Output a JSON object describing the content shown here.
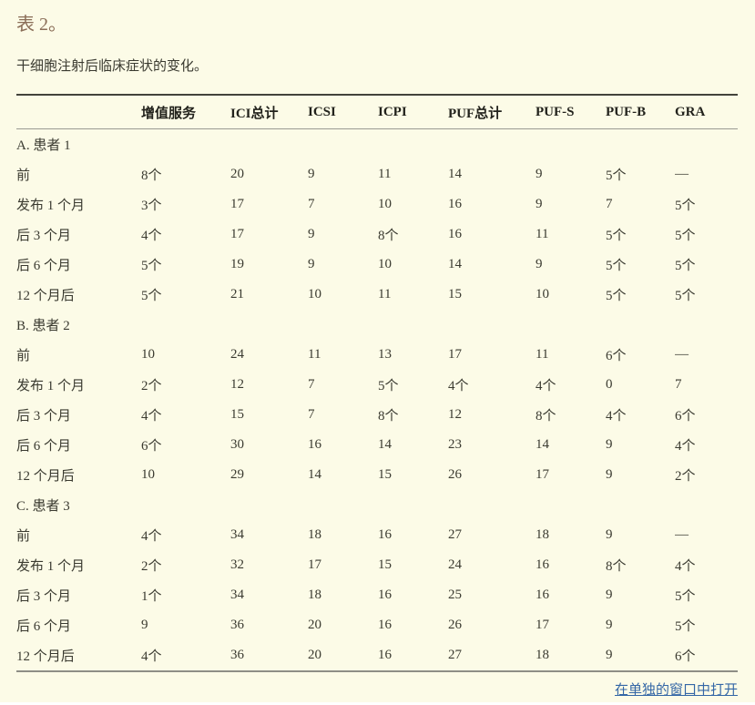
{
  "page": {
    "title": "表 2。",
    "subtitle": "干细胞注射后临床症状的变化。",
    "footer_link_label": "在单独的窗口中打开"
  },
  "colors": {
    "background": "#fcfbe7",
    "caption": "#8a6d57",
    "link": "#3467a6",
    "table_top_rule": "#43433b",
    "table_bottom_rule": "#8e8e86"
  },
  "table": {
    "headers": [
      "",
      "增值服务",
      "ICI总计",
      "ICSI",
      "ICPI",
      "PUF总计",
      "PUF-S",
      "PUF-B",
      "GRA"
    ],
    "sections": [
      {
        "label": "A. 患者 1",
        "rows": [
          {
            "label": "前",
            "values": [
              "8个",
              "20",
              "9",
              "11",
              "14",
              "9",
              "5个",
              "—"
            ]
          },
          {
            "label": "发布 1 个月",
            "values": [
              "3个",
              "17",
              "7",
              "10",
              "16",
              "9",
              "7",
              "5个"
            ]
          },
          {
            "label": "后 3 个月",
            "values": [
              "4个",
              "17",
              "9",
              "8个",
              "16",
              "11",
              "5个",
              "5个"
            ]
          },
          {
            "label": "后 6 个月",
            "values": [
              "5个",
              "19",
              "9",
              "10",
              "14",
              "9",
              "5个",
              "5个"
            ]
          },
          {
            "label": "12 个月后",
            "values": [
              "5个",
              "21",
              "10",
              "11",
              "15",
              "10",
              "5个",
              "5个"
            ]
          }
        ]
      },
      {
        "label": "B. 患者 2",
        "rows": [
          {
            "label": "前",
            "values": [
              "10",
              "24",
              "11",
              "13",
              "17",
              "11",
              "6个",
              "—"
            ]
          },
          {
            "label": "发布 1 个月",
            "values": [
              "2个",
              "12",
              "7",
              "5个",
              "4个",
              "4个",
              "0",
              "7"
            ]
          },
          {
            "label": "后 3 个月",
            "values": [
              "4个",
              "15",
              "7",
              "8个",
              "12",
              "8个",
              "4个",
              "6个"
            ]
          },
          {
            "label": "后 6 个月",
            "values": [
              "6个",
              "30",
              "16",
              "14",
              "23",
              "14",
              "9",
              "4个"
            ]
          },
          {
            "label": "12 个月后",
            "values": [
              "10",
              "29",
              "14",
              "15",
              "26",
              "17",
              "9",
              "2个"
            ]
          }
        ]
      },
      {
        "label": "C. 患者 3",
        "rows": [
          {
            "label": "前",
            "values": [
              "4个",
              "34",
              "18",
              "16",
              "27",
              "18",
              "9",
              "—"
            ]
          },
          {
            "label": "发布 1 个月",
            "values": [
              "2个",
              "32",
              "17",
              "15",
              "24",
              "16",
              "8个",
              "4个"
            ]
          },
          {
            "label": "后 3 个月",
            "values": [
              "1个",
              "34",
              "18",
              "16",
              "25",
              "16",
              "9",
              "5个"
            ]
          },
          {
            "label": "后 6 个月",
            "values": [
              "9",
              "36",
              "20",
              "16",
              "26",
              "17",
              "9",
              "5个"
            ]
          },
          {
            "label": "12 个月后",
            "values": [
              "4个",
              "36",
              "20",
              "16",
              "27",
              "18",
              "9",
              "6个"
            ]
          }
        ]
      }
    ]
  }
}
